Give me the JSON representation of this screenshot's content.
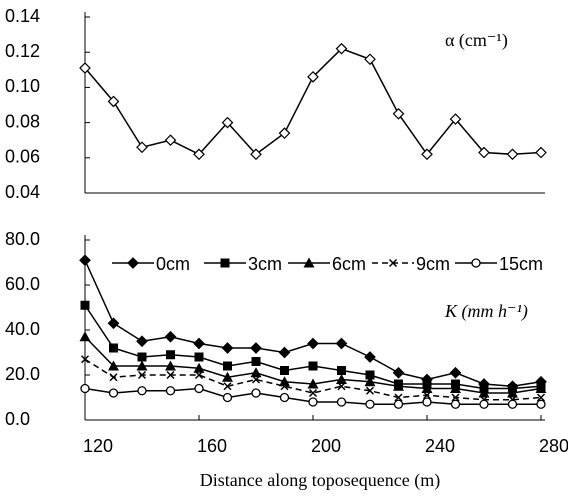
{
  "chart_data": [
    {
      "type": "line",
      "annotation": "α (cm⁻¹)",
      "x": [
        120,
        130,
        140,
        150,
        160,
        170,
        180,
        190,
        200,
        210,
        220,
        230,
        240,
        250,
        260,
        270,
        280
      ],
      "values": [
        0.111,
        0.092,
        0.066,
        0.07,
        0.062,
        0.08,
        0.062,
        0.074,
        0.106,
        0.122,
        0.116,
        0.085,
        0.062,
        0.082,
        0.063,
        0.062,
        0.063
      ],
      "color": "#000000",
      "marker": "diamond-open",
      "xlim": [
        120,
        280
      ],
      "ylim": [
        0.04,
        0.14
      ],
      "yticks": [
        {
          "value": 0.04,
          "label": "0.04"
        },
        {
          "value": 0.06,
          "label": "0.06"
        },
        {
          "value": 0.08,
          "label": "0.08"
        },
        {
          "value": 0.1,
          "label": "0.10"
        },
        {
          "value": 0.12,
          "label": "0.12"
        },
        {
          "value": 0.14,
          "label": "0.14"
        }
      ]
    },
    {
      "type": "line",
      "annotation": "K (mm h⁻¹)",
      "x_label": "Distance along toposequence (m)",
      "x": [
        120,
        130,
        140,
        150,
        160,
        170,
        180,
        190,
        200,
        210,
        220,
        230,
        240,
        250,
        260,
        270,
        280
      ],
      "series": [
        {
          "name": "0cm",
          "color": "#000000",
          "marker": "diamond",
          "dash": false,
          "values": [
            71,
            43,
            35,
            37,
            34,
            32,
            32,
            30,
            34,
            34,
            28,
            21,
            18,
            21,
            16,
            15,
            17
          ]
        },
        {
          "name": "3cm",
          "color": "#000000",
          "marker": "square",
          "dash": false,
          "values": [
            51,
            32,
            28,
            29,
            28,
            24,
            26,
            22,
            24,
            22,
            20,
            16,
            16,
            16,
            14,
            14,
            15
          ]
        },
        {
          "name": "6cm",
          "color": "#000000",
          "marker": "triangle",
          "dash": false,
          "values": [
            37,
            24,
            24,
            24,
            23,
            19,
            21,
            17,
            16,
            18,
            17,
            15,
            14,
            14,
            12,
            12,
            14
          ]
        },
        {
          "name": "9cm",
          "color": "#000000",
          "marker": "x",
          "dash": true,
          "values": [
            27,
            19,
            20,
            20,
            20,
            15,
            18,
            15,
            12,
            15,
            13,
            10,
            11,
            10,
            9,
            9,
            10
          ]
        },
        {
          "name": "15cm",
          "color": "#000000",
          "marker": "circle-open",
          "dash": false,
          "values": [
            14,
            12,
            13,
            13,
            14,
            10,
            12,
            10,
            8,
            8,
            7,
            7,
            8,
            7,
            7,
            7,
            7
          ]
        }
      ],
      "xlim": [
        120,
        280
      ],
      "ylim": [
        0,
        80
      ],
      "xticks": [
        120,
        160,
        200,
        240,
        280
      ],
      "yticks": [
        {
          "value": 0,
          "label": "0.0"
        },
        {
          "value": 20,
          "label": "20.0"
        },
        {
          "value": 40,
          "label": "40.0"
        },
        {
          "value": 60,
          "label": "60.0"
        },
        {
          "value": 80,
          "label": "80.0"
        }
      ]
    }
  ]
}
